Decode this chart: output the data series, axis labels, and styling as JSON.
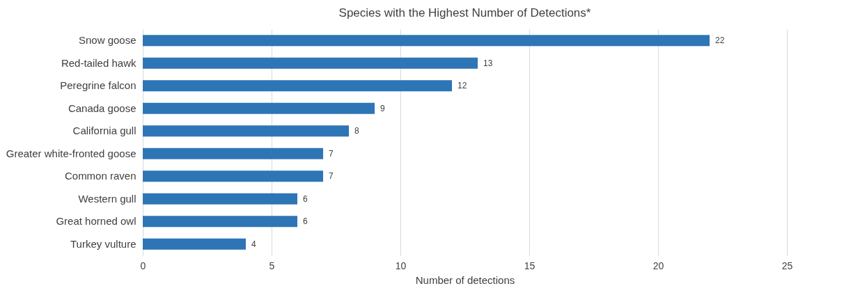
{
  "chart_data": {
    "type": "bar",
    "orientation": "horizontal",
    "title": "Species with the Highest Number of Detections*",
    "xlabel": "Number of detections",
    "categories": [
      "Snow goose",
      "Red-tailed hawk",
      "Peregrine falcon",
      "Canada goose",
      "California gull",
      "Greater white-fronted goose",
      "Common raven",
      "Western gull",
      "Great horned owl",
      "Turkey vulture"
    ],
    "values": [
      22,
      13,
      12,
      9,
      8,
      7,
      7,
      6,
      6,
      4
    ],
    "color": "#2e75b6",
    "xlim": [
      0,
      25
    ],
    "xticks": [
      0,
      5,
      10,
      15,
      20,
      25
    ],
    "grid": "x",
    "data_labels": true
  }
}
